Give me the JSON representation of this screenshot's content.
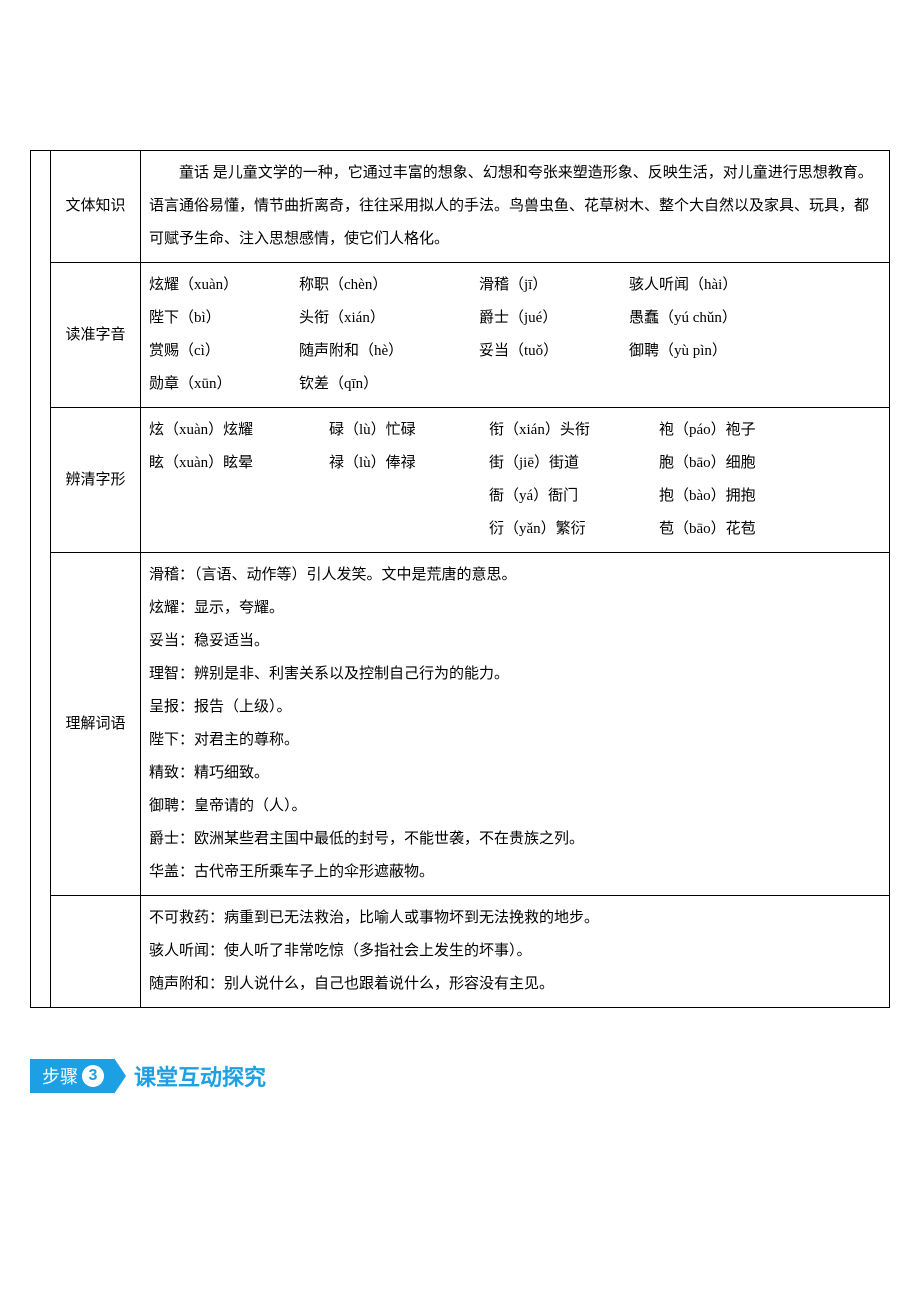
{
  "rows": {
    "wenti": {
      "label": "文体知识",
      "text": "童话 是儿童文学的一种，它通过丰富的想象、幻想和夸张来塑造形象、反映生活，对儿童进行思想教育。语言通俗易懂，情节曲折离奇，往往采用拟人的手法。鸟兽虫鱼、花草树木、整个大自然以及家具、玩具，都可赋予生命、注入思想感情，使它们人格化。"
    },
    "ziyin": {
      "label": "读准字音",
      "items": [
        "炫耀（xuàn）",
        "称职（chèn）",
        "滑稽（jī）",
        "骇人听闻（hài）",
        "陛下（bì）",
        "头衔（xián）",
        "爵士（jué）",
        "愚蠢（yú chǔn）",
        "赏赐（cì）",
        "随声附和（hè）",
        "妥当（tuǒ）",
        "御聘（yù pìn）",
        "勋章（xūn）",
        "钦差（qīn）",
        "",
        ""
      ]
    },
    "zixing": {
      "label": "辨清字形",
      "items": [
        "炫（xuàn）炫耀",
        "碌（lù）忙碌",
        "衔（xián）头衔",
        "袍（páo）袍子",
        "眩（xuàn）眩晕",
        "禄（lù）俸禄",
        "街（jiē）街道",
        "胞（bāo）细胞",
        "",
        "",
        "衙（yá）衙门",
        "抱（bào）拥抱",
        "",
        "",
        "衍（yǎn）繁衍",
        "苞（bāo）花苞"
      ]
    },
    "ciyu": {
      "label": "理解词语",
      "lines": [
        "滑稽：（言语、动作等）引人发笑。文中是荒唐的意思。",
        "炫耀：显示，夸耀。",
        "妥当：稳妥适当。",
        "理智：辨别是非、利害关系以及控制自己行为的能力。",
        "呈报：报告（上级）。",
        "陛下：对君主的尊称。",
        "精致：精巧细致。",
        "御聘：皇帝请的（人）。",
        "爵士：欧洲某些君主国中最低的封号，不能世袭，不在贵族之列。",
        "华盖：古代帝王所乘车子上的伞形遮蔽物。"
      ]
    },
    "extra": {
      "lines": [
        "不可救药：病重到已无法救治，比喻人或事物坏到无法挽救的地步。",
        "骇人听闻：使人听了非常吃惊（多指社会上发生的坏事）。",
        "随声附和：别人说什么，自己也跟着说什么，形容没有主见。"
      ]
    }
  },
  "section": {
    "step": "步骤",
    "num": "3",
    "title": "课堂互动探究"
  },
  "colors": {
    "accent": "#1ca0e3",
    "text": "#000000",
    "bg": "#ffffff"
  }
}
